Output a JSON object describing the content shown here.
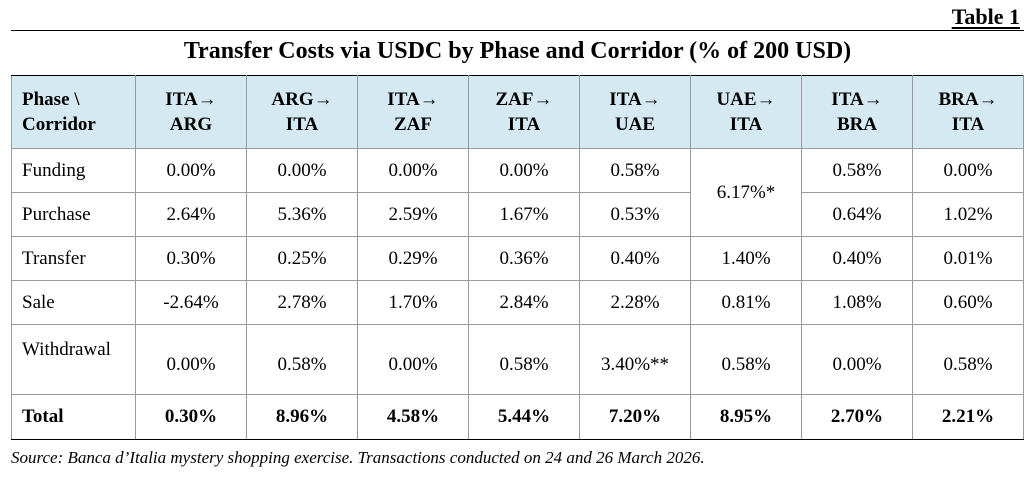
{
  "table_label": "Table 1",
  "title": "Transfer Costs via USDC by Phase and Corridor (% of 200 USD)",
  "header": {
    "phase_line1": "Phase \\",
    "phase_line2": "Corridor",
    "corridors": [
      {
        "from": "ITA→",
        "to": "ARG"
      },
      {
        "from": "ARG→",
        "to": "ITA"
      },
      {
        "from": "ITA→",
        "to": "ZAF"
      },
      {
        "from": "ZAF→",
        "to": "ITA"
      },
      {
        "from": "ITA→",
        "to": "UAE"
      },
      {
        "from": "UAE→",
        "to": "ITA"
      },
      {
        "from": "ITA→",
        "to": "BRA"
      },
      {
        "from": "BRA→",
        "to": "ITA"
      }
    ]
  },
  "rows": {
    "funding": {
      "label": "Funding",
      "values": [
        "0.00%",
        "0.00%",
        "0.00%",
        "0.00%",
        "0.58%",
        "0.58%",
        "0.00%"
      ]
    },
    "purchase": {
      "label": "Purchase",
      "values": [
        "2.64%",
        "5.36%",
        "2.59%",
        "1.67%",
        "0.53%",
        "0.64%",
        "1.02%"
      ]
    },
    "uae_ita_funding_purchase": "6.17%*",
    "transfer": {
      "label": "Transfer",
      "values": [
        "0.30%",
        "0.25%",
        "0.29%",
        "0.36%",
        "0.40%",
        "1.40%",
        "0.40%",
        "0.01%"
      ]
    },
    "sale": {
      "label": "Sale",
      "values": [
        "-2.64%",
        "2.78%",
        "1.70%",
        "2.84%",
        "2.28%",
        "0.81%",
        "1.08%",
        "0.60%"
      ]
    },
    "withdrawal": {
      "label": "Withdrawal",
      "values": [
        "0.00%",
        "0.58%",
        "0.00%",
        "0.58%",
        "3.40%**",
        "0.58%",
        "0.00%",
        "0.58%"
      ]
    },
    "total": {
      "label": "Total",
      "values": [
        "0.30%",
        "8.96%",
        "4.58%",
        "5.44%",
        "7.20%",
        "8.95%",
        "2.70%",
        "2.21%"
      ]
    }
  },
  "source": "Source: Banca d’Italia mystery shopping exercise. Transactions conducted on 24 and 26 March 2026."
}
